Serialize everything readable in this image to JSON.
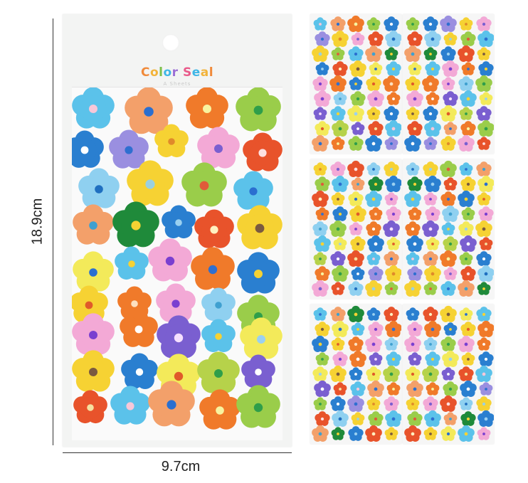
{
  "product": {
    "brand_text": "Color Seal",
    "brand_subtext": "A Sheets",
    "brand_letter_colors": [
      "#f08a3a",
      "#f2b33a",
      "#7cc04b",
      "#3fb6e6",
      "#9b6fd6",
      "#e95a8a",
      "#3fb6e6",
      "#f2b33a",
      "#f08a3a",
      "#7cc04b"
    ]
  },
  "dimensions": {
    "height_label": "18.9cm",
    "width_label": "9.7cm"
  },
  "palette": {
    "sky": "#5bc2ea",
    "peach": "#f3a06a",
    "orange": "#f07a2a",
    "lime": "#9acd4a",
    "blue": "#2a7fd0",
    "lavender": "#9a8fe0",
    "yellow": "#f6d233",
    "pink": "#f3a9d6",
    "red": "#e8532b",
    "lightblue": "#8fd0f0",
    "green": "#1f8a3a",
    "lightyellow": "#f3ea5a",
    "purple": "#7a5fd0",
    "olive": "#b6d24a"
  },
  "flowers": [
    {
      "petal": "sky",
      "center": "#f7c7d8"
    },
    {
      "petal": "peach",
      "center": "#2a6fd0"
    },
    {
      "petal": "orange",
      "center": "#f8f3a0"
    },
    {
      "petal": "lime",
      "center": "#2f9e4a"
    },
    {
      "petal": "blue",
      "center": "#ffffff"
    },
    {
      "petal": "lavender",
      "center": "#2f6fd0"
    },
    {
      "petal": "yellow",
      "center": "#e08a2a"
    },
    {
      "petal": "pink",
      "center": "#7a5fd0"
    },
    {
      "petal": "red",
      "center": "#fde0e0"
    },
    {
      "petal": "lightblue",
      "center": "#1f6fc0"
    },
    {
      "petal": "yellow",
      "center": "#9ad0e0"
    },
    {
      "petal": "lime",
      "center": "#e05a3a"
    },
    {
      "petal": "sky",
      "center": "#2a6fd0"
    },
    {
      "petal": "peach",
      "center": "#3fa0d0"
    },
    {
      "petal": "green",
      "center": "#f6d233"
    },
    {
      "petal": "blue",
      "center": "#9ad0f0"
    },
    {
      "petal": "red",
      "center": "#fff0c0"
    },
    {
      "petal": "yellow",
      "center": "#7a5a40"
    },
    {
      "petal": "lightyellow",
      "center": "#2a6fd0"
    },
    {
      "petal": "sky",
      "center": "#f6d233"
    },
    {
      "petal": "pink",
      "center": "#7a3fd0"
    },
    {
      "petal": "orange",
      "center": "#2f6fd0"
    },
    {
      "petal": "blue",
      "center": "#f6d233"
    },
    {
      "petal": "yellow",
      "center": "#e05a2a"
    },
    {
      "petal": "orange",
      "center": "#fde0c0"
    },
    {
      "petal": "pink",
      "center": "#7a3fd0"
    },
    {
      "petal": "lightblue",
      "center": "#3fa0d0"
    },
    {
      "petal": "lime",
      "center": "#2f9e4a"
    },
    {
      "petal": "pink",
      "center": "#7a3fd0"
    },
    {
      "petal": "orange",
      "center": "#ffffff"
    },
    {
      "petal": "purple",
      "center": "#f6e0ff"
    },
    {
      "petal": "sky",
      "center": "#f6d233"
    },
    {
      "petal": "lightyellow",
      "center": "#9ad0f0"
    },
    {
      "petal": "yellow",
      "center": "#7a5a40"
    },
    {
      "petal": "blue",
      "center": "#ffffff"
    },
    {
      "petal": "lightyellow",
      "center": "#e05a2a"
    },
    {
      "petal": "olive",
      "center": "#2f9e4a"
    },
    {
      "petal": "purple",
      "center": "#ffffff"
    },
    {
      "petal": "red",
      "center": "#f6e0a0"
    }
  ]
}
